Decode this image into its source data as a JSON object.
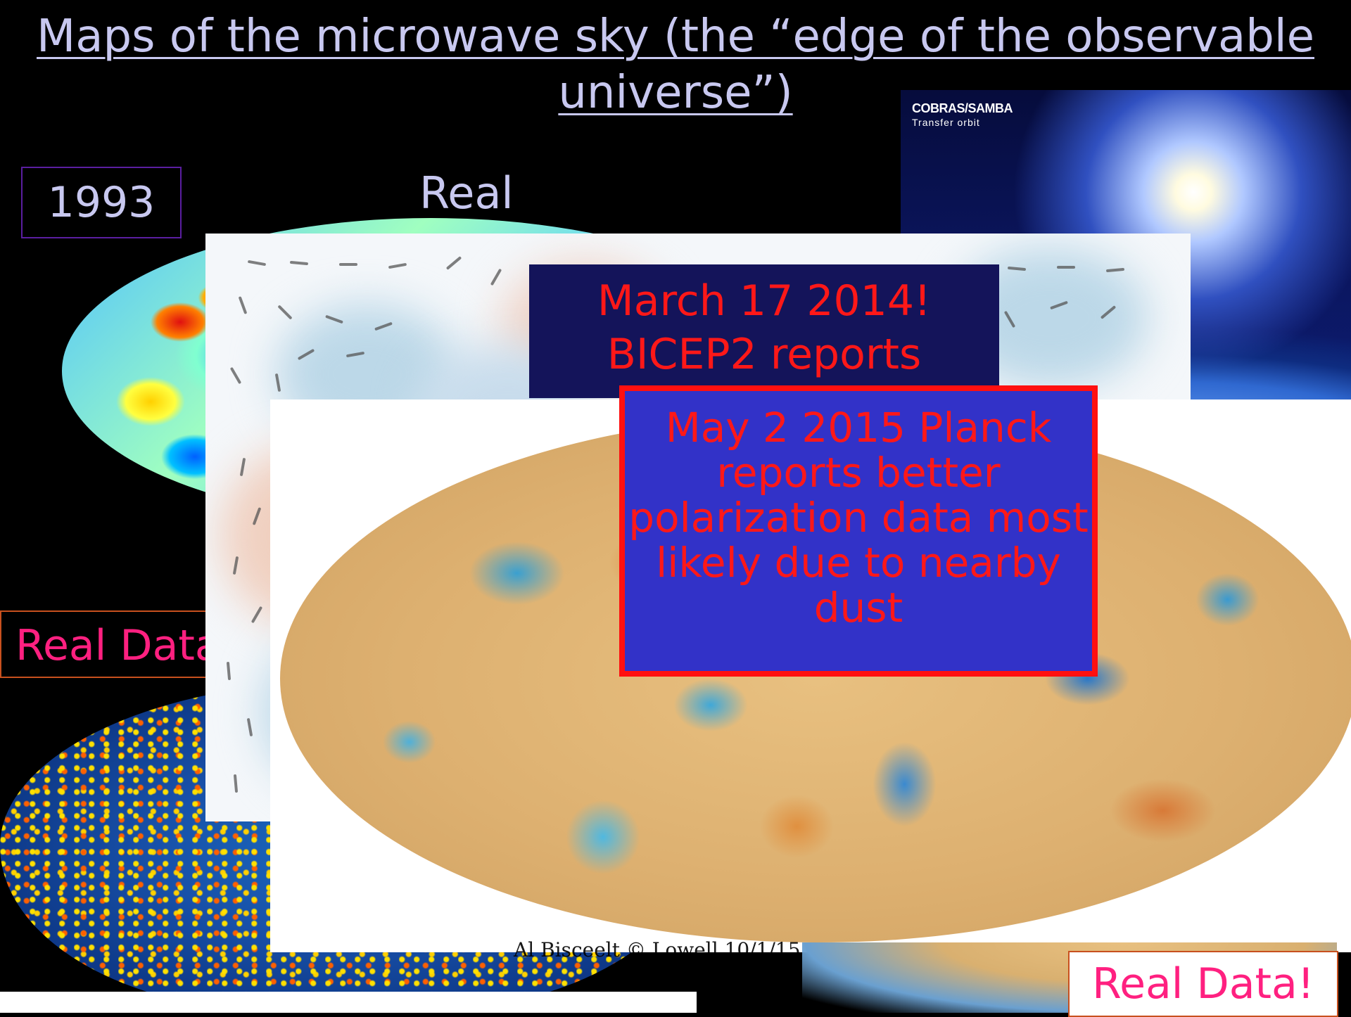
{
  "slide": {
    "title": "Maps of the microwave sky (the “edge of the observable universe”)",
    "year_label": "1993",
    "real_label": "Real",
    "wmap_label": "Real Data",
    "real_data_label": "Real Data!",
    "march_text": "March 17 2014! BICEP2 reports",
    "planck_text": "May 2 2015 Planck reports better polarization data most likely due to nearby dust",
    "footer_text": "Al Bisceelt © Lowell  10/1/15"
  },
  "cobras_image": {
    "caption_line1": "COBRAS/SAMBA",
    "caption_line2": "Transfer orbit"
  },
  "colors": {
    "title": "#c8c8f0",
    "accent_red": "#ff1818",
    "magenta": "#ff2080",
    "planck_box": "#3232c8",
    "march_box": "#14145a"
  }
}
